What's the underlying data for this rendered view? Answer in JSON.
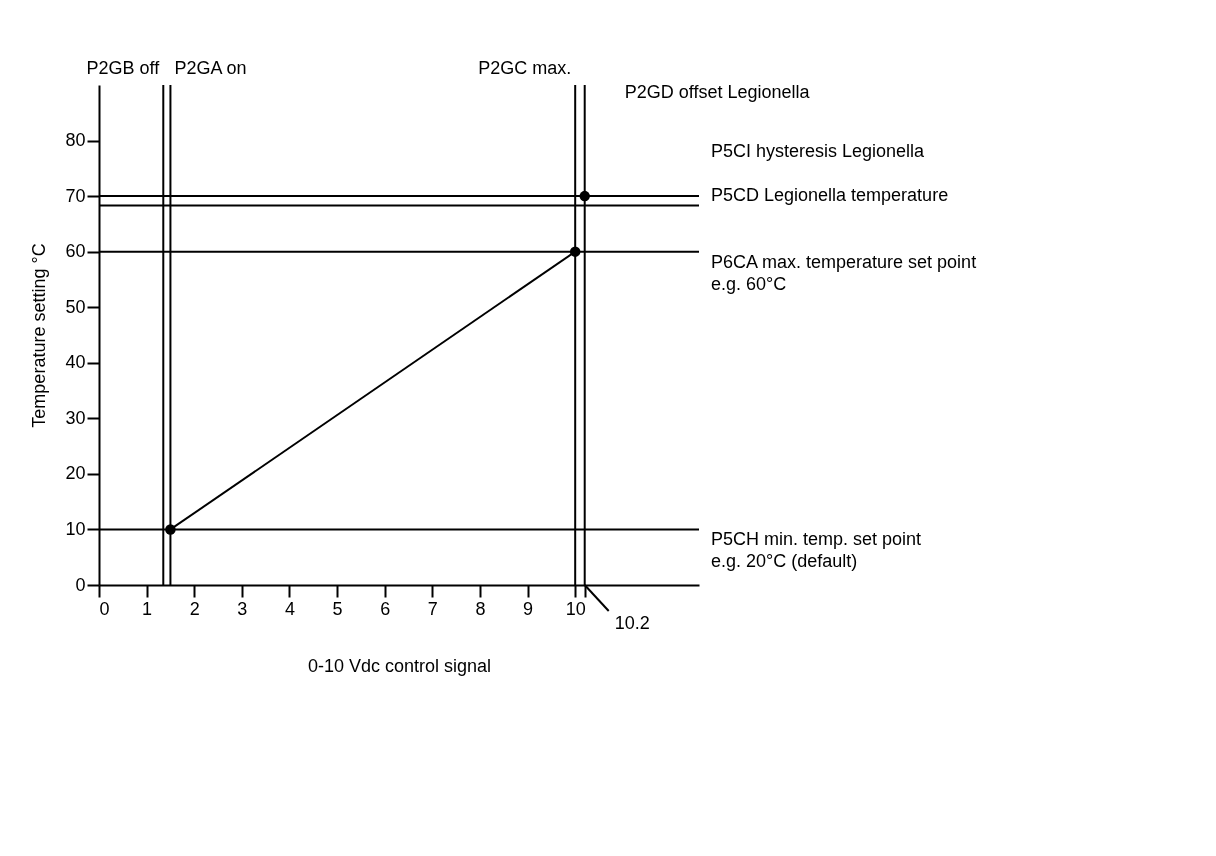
{
  "chart_data": {
    "type": "line",
    "xlabel": "0-10 Vdc control signal",
    "ylabel": "Temperature setting °C",
    "xlim": [
      0,
      12.6
    ],
    "ylim": [
      0,
      90
    ],
    "xticks": [
      0,
      1,
      2,
      3,
      4,
      5,
      6,
      7,
      8,
      9,
      10,
      {
        "value": 10.2,
        "label": null
      }
    ],
    "yticks": [
      0,
      10,
      20,
      30,
      40,
      50,
      60,
      70,
      80
    ],
    "grid": false,
    "marker": "circle",
    "line_style": "solid",
    "series": [
      {
        "color": "#000000",
        "x": [
          1.5,
          10
        ],
        "values": [
          10,
          60
        ]
      },
      {
        "type": "scatter",
        "color": "#000000",
        "x": [
          10.2
        ],
        "values": [
          70
        ]
      }
    ],
    "ref_lines": [
      {
        "axis": "x",
        "value": 1.35,
        "label": "P2GB off"
      },
      {
        "axis": "x",
        "value": 1.5,
        "label": "P2GA on"
      },
      {
        "axis": "x",
        "value": 10,
        "label": "P2GC max."
      },
      {
        "axis": "x",
        "value": 10.2,
        "label": "P2GD offset Legionella"
      },
      {
        "axis": "y",
        "value": 70,
        "label": "P5CD Legionella temperature"
      },
      {
        "axis": "y",
        "value": 68.3,
        "label": "P5CI hysteresis Legionella"
      },
      {
        "axis": "y",
        "value": 60,
        "label": "P6CA max. temperature set point\ne.g. 60°C"
      },
      {
        "axis": "y",
        "value": 10,
        "label": "P5CH min. temp. set point\ne.g. 20°C (default)"
      }
    ],
    "annotations": [
      {
        "text": "10.2",
        "x": 10.2,
        "y": 0
      }
    ]
  }
}
